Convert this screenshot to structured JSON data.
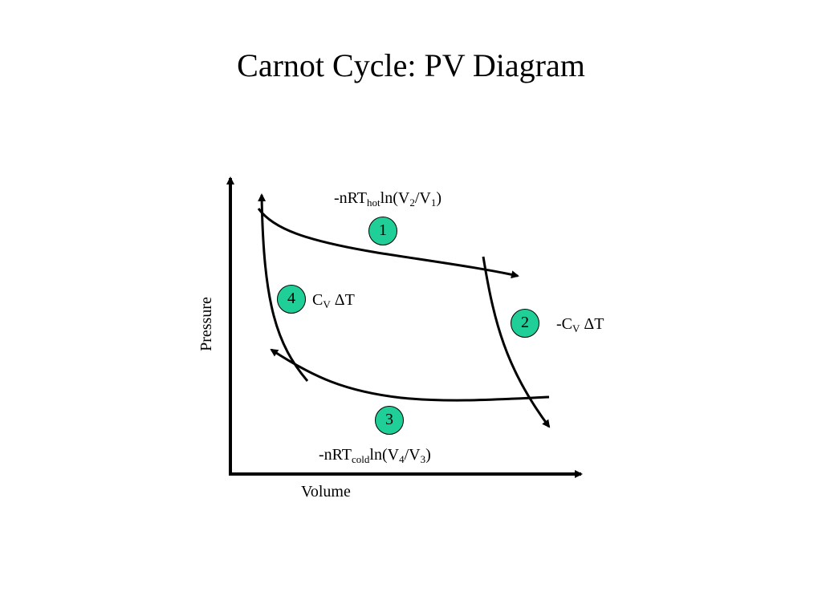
{
  "title": "Carnot Cycle: PV Diagram",
  "axes": {
    "x_label": "Volume",
    "y_label": "Pressure"
  },
  "colors": {
    "step_fill": "#1fcf97",
    "ink": "#000000"
  },
  "steps": [
    {
      "number": "1",
      "expr": {
        "a": "-nRT",
        "sub1": "hot",
        "b": "ln(V",
        "sub2": "2",
        "c": "/V",
        "sub3": "1",
        "d": ")"
      }
    },
    {
      "number": "2",
      "expr": {
        "a": "-C",
        "sub1": "V",
        "b": " ΔT"
      }
    },
    {
      "number": "3",
      "expr": {
        "a": "-nRT",
        "sub1": "cold",
        "b": "ln(V",
        "sub2": "4",
        "c": "/V",
        "sub3": "3",
        "d": ")"
      }
    },
    {
      "number": "4",
      "expr": {
        "a": "C",
        "sub1": "V",
        "b": " ΔT"
      }
    }
  ]
}
